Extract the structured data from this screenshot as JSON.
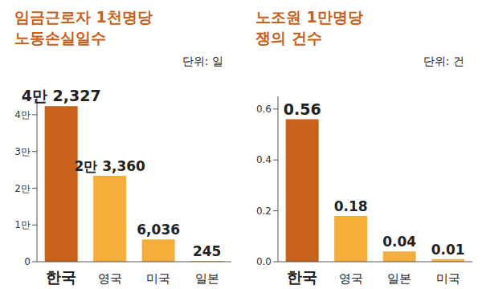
{
  "chart_data": [
    {
      "type": "bar",
      "title": "임금근로자 1천명당\n노동손실일수",
      "subtitle": "단위: 일",
      "categories": [
        "한국",
        "영국",
        "미국",
        "일본"
      ],
      "values": [
        42327,
        23360,
        6036,
        245
      ],
      "value_labels": [
        "4만 2,327",
        "2만 3,360",
        "6,036",
        "245"
      ],
      "colors": [
        "#c8611b",
        "#f5ae3a",
        "#f5ae3a",
        "#f5ae3a"
      ],
      "ylim": [
        0,
        45000
      ],
      "yticks": [
        0,
        {
          "value": 10000,
          "label": "1만"
        },
        {
          "value": 20000,
          "label": "2만"
        },
        {
          "value": 30000,
          "label": "3만"
        },
        {
          "value": 40000,
          "label": "4만"
        }
      ],
      "grid": false,
      "data_labels": true
    },
    {
      "type": "bar",
      "title": "노조원 1만명당\n쟁의 건수",
      "subtitle": "단위: 건",
      "categories": [
        "한국",
        "영국",
        "일본",
        "미국"
      ],
      "values": [
        0.56,
        0.18,
        0.04,
        0.01
      ],
      "colors": [
        "#c8611b",
        "#f5ae3a",
        "#f5ae3a",
        "#f5ae3a"
      ],
      "ylim": [
        0,
        0.65
      ],
      "yticks": [
        {
          "value": 0,
          "label": "0.0"
        },
        0.2,
        0.4,
        0.6
      ],
      "grid": false,
      "data_labels": true
    }
  ]
}
